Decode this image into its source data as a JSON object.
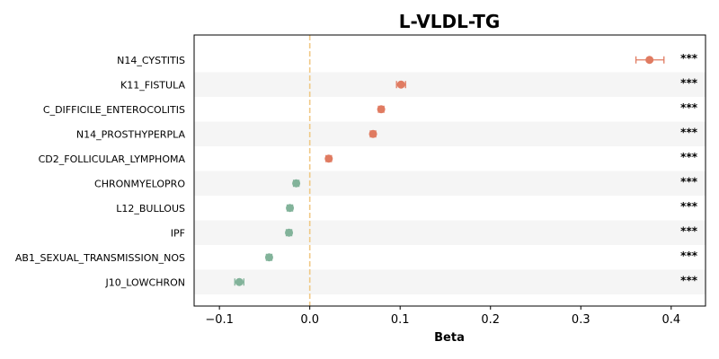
{
  "chart_data": {
    "type": "scatter",
    "title": "L-VLDL-TG",
    "xlabel": "Beta",
    "xlim": [
      -0.128,
      0.438
    ],
    "xticks": [
      -0.1,
      0.0,
      0.1,
      0.2,
      0.3,
      0.4
    ],
    "xtick_labels": [
      "−0.1",
      "0.0",
      "0.1",
      "0.2",
      "0.3",
      "0.4"
    ],
    "reference_line": 0,
    "row_striping": true,
    "colors": {
      "positive": "#e07b61",
      "negative": "#82b39a",
      "reference_line": "#f0c987",
      "stripe": "#f5f5f5"
    },
    "points": [
      {
        "category": "N14_CYSTITIS",
        "beta": 0.376,
        "ci_low": 0.361,
        "ci_high": 0.392,
        "significance": "***"
      },
      {
        "category": "K11_FISTULA",
        "beta": 0.101,
        "ci_low": 0.096,
        "ci_high": 0.106,
        "significance": "***"
      },
      {
        "category": "C_DIFFICILE_ENTEROCOLITIS",
        "beta": 0.079,
        "ci_low": 0.076,
        "ci_high": 0.082,
        "significance": "***"
      },
      {
        "category": "N14_PROSTHYPERPLA",
        "beta": 0.07,
        "ci_low": 0.067,
        "ci_high": 0.073,
        "significance": "***"
      },
      {
        "category": "CD2_FOLLICULAR_LYMPHOMA",
        "beta": 0.021,
        "ci_low": 0.018,
        "ci_high": 0.024,
        "significance": "***"
      },
      {
        "category": "CHRONMYELOPRO",
        "beta": -0.015,
        "ci_low": -0.018,
        "ci_high": -0.012,
        "significance": "***"
      },
      {
        "category": "L12_BULLOUS",
        "beta": -0.022,
        "ci_low": -0.025,
        "ci_high": -0.019,
        "significance": "***"
      },
      {
        "category": "IPF",
        "beta": -0.023,
        "ci_low": -0.026,
        "ci_high": -0.02,
        "significance": "***"
      },
      {
        "category": "AB1_SEXUAL_TRANSMISSION_NOS",
        "beta": -0.045,
        "ci_low": -0.048,
        "ci_high": -0.042,
        "significance": "***"
      },
      {
        "category": "J10_LOWCHRON",
        "beta": -0.078,
        "ci_low": -0.083,
        "ci_high": -0.073,
        "significance": "***"
      }
    ]
  }
}
